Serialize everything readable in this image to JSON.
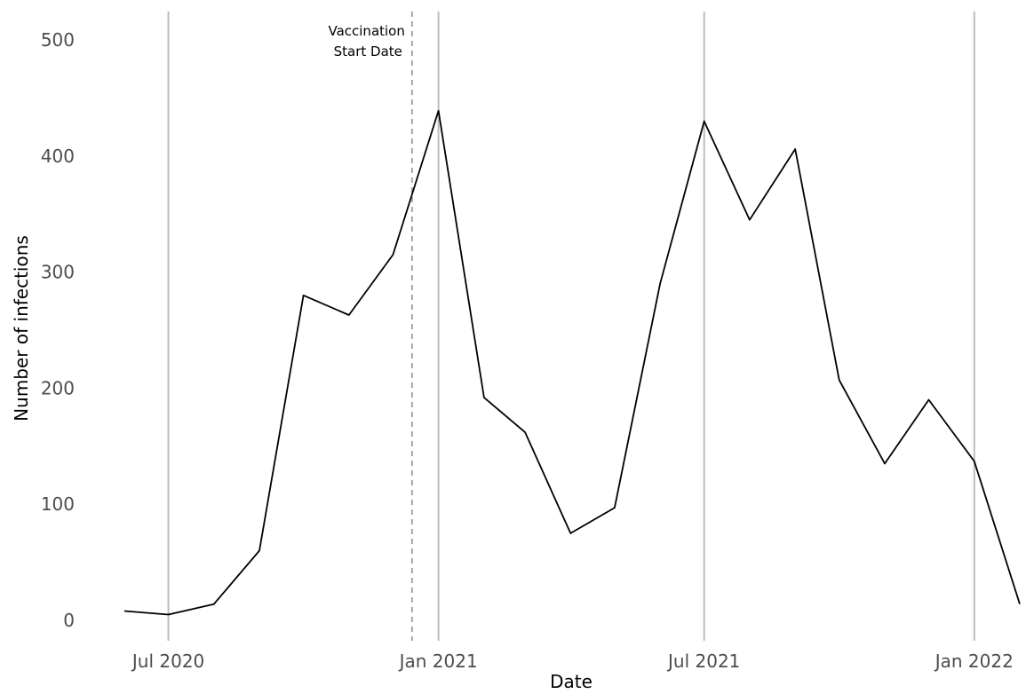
{
  "chart_data": {
    "type": "line",
    "xlabel": "Date",
    "ylabel": "Number of infections",
    "ylim": [
      0,
      500
    ],
    "xlim": [
      "2020-05-01",
      "2022-02-15"
    ],
    "y_ticks": [
      0,
      100,
      200,
      300,
      400,
      500
    ],
    "x_ticks": [
      {
        "date": "2020-07-01",
        "label": "Jul 2020"
      },
      {
        "date": "2021-01-01",
        "label": "Jan 2021"
      },
      {
        "date": "2021-07-01",
        "label": "Jul 2021"
      },
      {
        "date": "2022-01-01",
        "label": "Jan 2022"
      }
    ],
    "grid": "vertical lines at x ticks",
    "annotation": {
      "date": "2020-12-14",
      "line1": "Vaccination",
      "line2": "Start Date",
      "style": "dashed",
      "color": "#a6a6a6"
    },
    "series": [
      {
        "color": "#000000",
        "x": [
          "2020-06-01",
          "2020-07-01",
          "2020-08-01",
          "2020-09-01",
          "2020-10-01",
          "2020-11-01",
          "2020-12-01",
          "2021-01-01",
          "2021-02-01",
          "2021-03-01",
          "2021-04-01",
          "2021-05-01",
          "2021-06-01",
          "2021-07-01",
          "2021-08-01",
          "2021-09-01",
          "2021-10-01",
          "2021-11-01",
          "2021-12-01",
          "2022-01-01",
          "2022-02-01"
        ],
        "y": [
          8,
          5,
          14,
          60,
          280,
          263,
          315,
          439,
          192,
          162,
          75,
          97,
          290,
          430,
          345,
          406,
          207,
          135,
          190,
          137,
          14
        ]
      }
    ]
  }
}
